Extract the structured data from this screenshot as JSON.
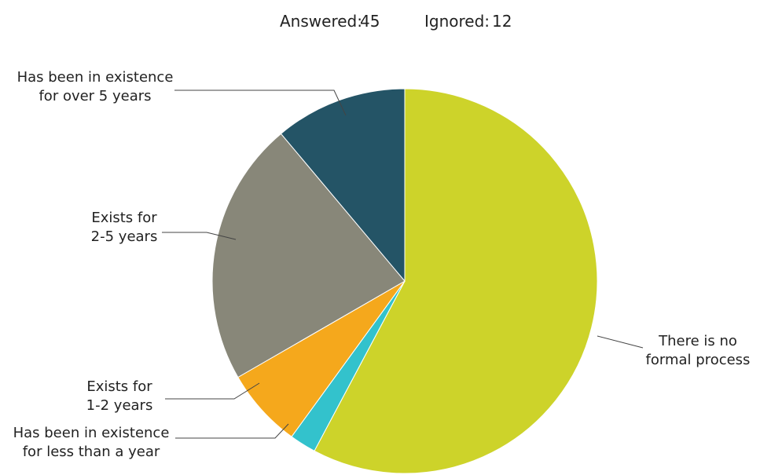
{
  "chart_data": {
    "type": "pie",
    "header": {
      "answered_label": "Answered:",
      "answered_value": 45,
      "ignored_label": "Ignored:",
      "ignored_value": 12
    },
    "slices": [
      {
        "label": "There is no formal process",
        "label_lines": [
          "There is no",
          "formal process"
        ],
        "value": 26,
        "color": "#CDD32A"
      },
      {
        "label": "Has been in existence for less than a year",
        "label_lines": [
          "Has been in existence",
          "for less than a year"
        ],
        "value": 1,
        "color": "#33C2CC"
      },
      {
        "label": "Exists for 1-2 years",
        "label_lines": [
          "Exists for",
          "1-2 years"
        ],
        "value": 3,
        "color": "#F5A81C"
      },
      {
        "label": "Exists for 2-5 years",
        "label_lines": [
          "Exists for",
          "2-5 years"
        ],
        "value": 10,
        "color": "#888779"
      },
      {
        "label": "Has been in existence for over 5 years",
        "label_lines": [
          "Has been in existence",
          "for over 5 years"
        ],
        "value": 5,
        "color": "#245466"
      }
    ],
    "start_angle": "12 o'clock",
    "direction": "clockwise",
    "legend": "none"
  }
}
